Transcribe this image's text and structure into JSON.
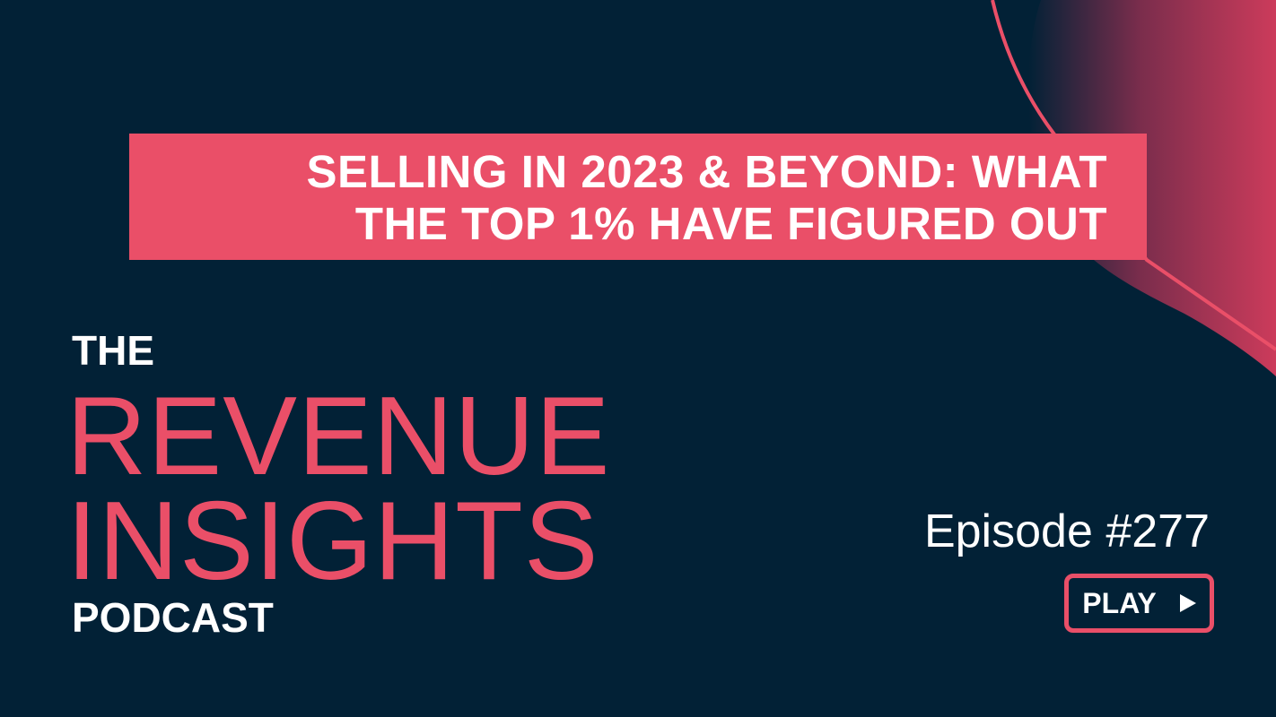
{
  "episode_title": {
    "line1": "SELLING IN 2023 & BEYOND: WHAT",
    "line2": "THE TOP 1% HAVE FIGURED OUT"
  },
  "podcast_name": {
    "the": "THE",
    "revenue": "REVENUE",
    "insights": "INSIGHTS",
    "podcast": "PODCAST"
  },
  "episode_number": "Episode #277",
  "play_button": {
    "label": "PLAY",
    "icon": "play-triangle-icon"
  },
  "colors": {
    "background": "#022136",
    "accent": "#ea4f68",
    "text": "#ffffff"
  }
}
